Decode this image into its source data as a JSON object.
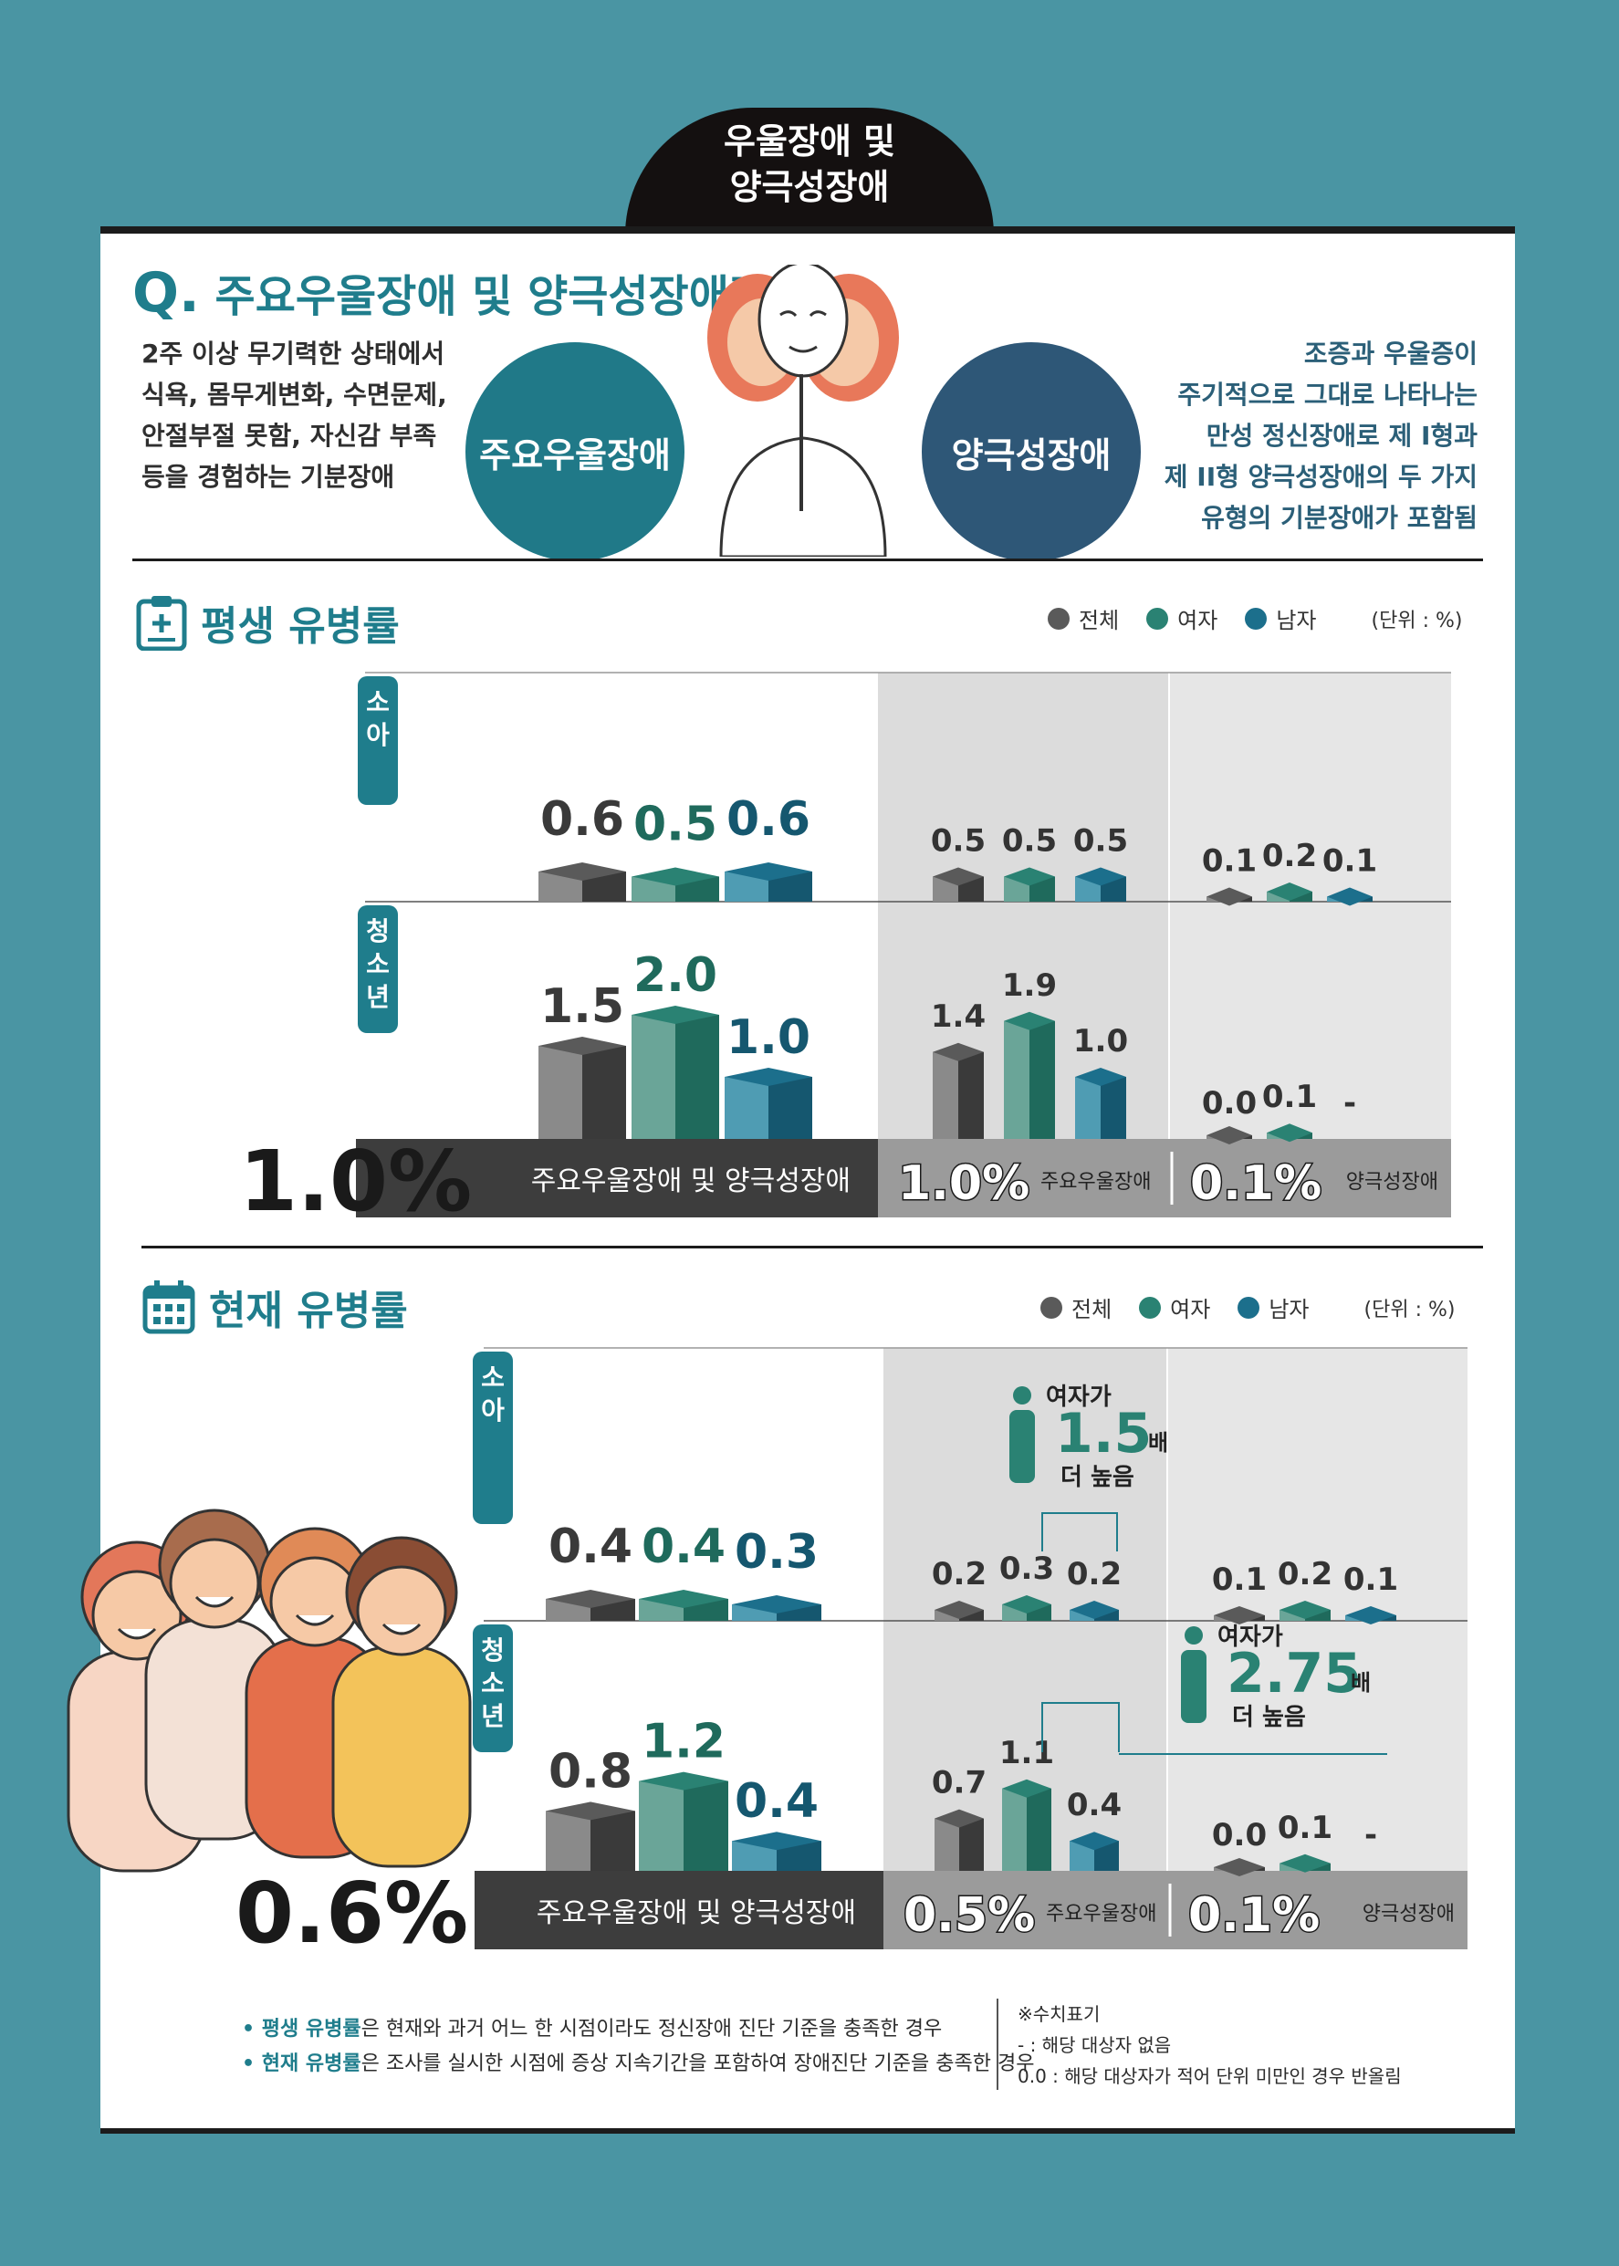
{
  "header": {
    "line1": "우울장애 및",
    "line2": "양극성장애"
  },
  "question": {
    "mark": "Q.",
    "text": "주요우울장애 및 양극성장애란?"
  },
  "intro": {
    "left": [
      "2주 이상 무기력한 상태에서",
      "식욕, 몸무게변화, 수면문제,",
      "안절부절 못함, 자신감 부족",
      "등을 경험하는 기분장애"
    ],
    "right": [
      "조증과 우울증이",
      "주기적으로 그대로 나타나는",
      "만성 정신장애로 제 I형과",
      "제 II형 양극성장애의 두 가지",
      "유형의 기분장애가 포함됨"
    ],
    "circle_left": "주요우울장애",
    "circle_right": "양극성장애"
  },
  "legend": {
    "total": "전체",
    "female": "여자",
    "male": "남자",
    "unit": "(단위 : %)"
  },
  "colors": {
    "total": "#5a5a5a",
    "female": "#2a8273",
    "male": "#1c6f8c",
    "accent": "#1f7d8c",
    "dark_band": "#3d3d3d",
    "grey_band": "#9b9b9b"
  },
  "age_labels": {
    "child": "소아",
    "teen": "청소년"
  },
  "lifetime": {
    "title": "평생 유병률",
    "groups": [
      {
        "name": "주요우울장애 및 양극성장애",
        "big": "1.0%",
        "child": [
          0.6,
          0.5,
          0.6
        ],
        "teen": [
          1.5,
          2.0,
          1.0
        ],
        "child_labels": [
          "0.6",
          "0.5",
          "0.6"
        ],
        "teen_labels": [
          "1.5",
          "2.0",
          "1.0"
        ]
      },
      {
        "name": "주요우울장애",
        "big": "1.0%",
        "child": [
          0.5,
          0.5,
          0.5
        ],
        "teen": [
          1.4,
          1.9,
          1.0
        ],
        "child_labels": [
          "0.5",
          "0.5",
          "0.5"
        ],
        "teen_labels": [
          "1.4",
          "1.9",
          "1.0"
        ]
      },
      {
        "name": "양극성장애",
        "big": "0.1%",
        "child": [
          0.1,
          0.2,
          0.1
        ],
        "teen": [
          0.0,
          0.1,
          null
        ],
        "child_labels": [
          "0.1",
          "0.2",
          "0.1"
        ],
        "teen_labels": [
          "0.0",
          "0.1",
          "-"
        ]
      }
    ]
  },
  "current": {
    "title": "현재 유병률",
    "groups": [
      {
        "name": "주요우울장애 및 양극성장애",
        "big": "0.6%",
        "child": [
          0.4,
          0.4,
          0.3
        ],
        "teen": [
          0.8,
          1.2,
          0.4
        ],
        "child_labels": [
          "0.4",
          "0.4",
          "0.3"
        ],
        "teen_labels": [
          "0.8",
          "1.2",
          "0.4"
        ]
      },
      {
        "name": "주요우울장애",
        "big": "0.5%",
        "child": [
          0.2,
          0.3,
          0.2
        ],
        "teen": [
          0.7,
          1.1,
          0.4
        ],
        "child_labels": [
          "0.2",
          "0.3",
          "0.2"
        ],
        "teen_labels": [
          "0.7",
          "1.1",
          "0.4"
        ]
      },
      {
        "name": "양극성장애",
        "big": "0.1%",
        "child": [
          0.1,
          0.2,
          0.1
        ],
        "teen": [
          0.0,
          0.1,
          null
        ],
        "child_labels": [
          "0.1",
          "0.2",
          "0.1"
        ],
        "teen_labels": [
          "0.0",
          "0.1",
          "-"
        ]
      }
    ],
    "callout_child": {
      "top": "여자가",
      "value": "1.5",
      "unit": "배",
      "bottom": "더 높음"
    },
    "callout_teen": {
      "top": "여자가",
      "value": "2.75",
      "unit": "배",
      "bottom": "더 높음"
    }
  },
  "footnotes": {
    "line1_bold": "• 평생 유병률",
    "line1": "은 현재와 과거 어느 한 시점이라도 정신장애 진단 기준을 충족한 경우",
    "line2_bold": "• 현재 유병률",
    "line2": "은 조사를 실시한 시점에 증상 지속기간을 포함하여 장애진단 기준을 충족한 경우"
  },
  "notes": {
    "title": "※수치표기",
    "dash": "- :  해당 대상자 없음",
    "zero": "0.0 :  해당 대상자가 적어 단위 미만인 경우 반올림"
  },
  "chart_data": [
    {
      "type": "bar",
      "title": "평생 유병률",
      "categories": [
        "소아 주요우울장애 및 양극성장애",
        "소아 주요우울장애",
        "소아 양극성장애",
        "청소년 주요우울장애 및 양극성장애",
        "청소년 주요우울장애",
        "청소년 양극성장애"
      ],
      "series": [
        {
          "name": "전체",
          "values": [
            0.6,
            0.5,
            0.1,
            1.5,
            1.4,
            0.0
          ]
        },
        {
          "name": "여자",
          "values": [
            0.5,
            0.5,
            0.2,
            2.0,
            1.9,
            0.1
          ]
        },
        {
          "name": "남자",
          "values": [
            0.6,
            0.5,
            0.1,
            1.0,
            1.0,
            null
          ]
        }
      ]
    },
    {
      "type": "bar",
      "title": "현재 유병률",
      "categories": [
        "소아 주요우울장애 및 양극성장애",
        "소아 주요우울장애",
        "소아 양극성장애",
        "청소년 주요우울장애 및 양극성장애",
        "청소년 주요우울장애",
        "청소년 양극성장애"
      ],
      "series": [
        {
          "name": "전체",
          "values": [
            0.4,
            0.2,
            0.1,
            0.8,
            0.7,
            0.0
          ]
        },
        {
          "name": "여자",
          "values": [
            0.4,
            0.3,
            0.2,
            1.2,
            1.1,
            0.1
          ]
        },
        {
          "name": "남자",
          "values": [
            0.3,
            0.2,
            0.1,
            0.4,
            0.4,
            null
          ]
        }
      ]
    }
  ]
}
